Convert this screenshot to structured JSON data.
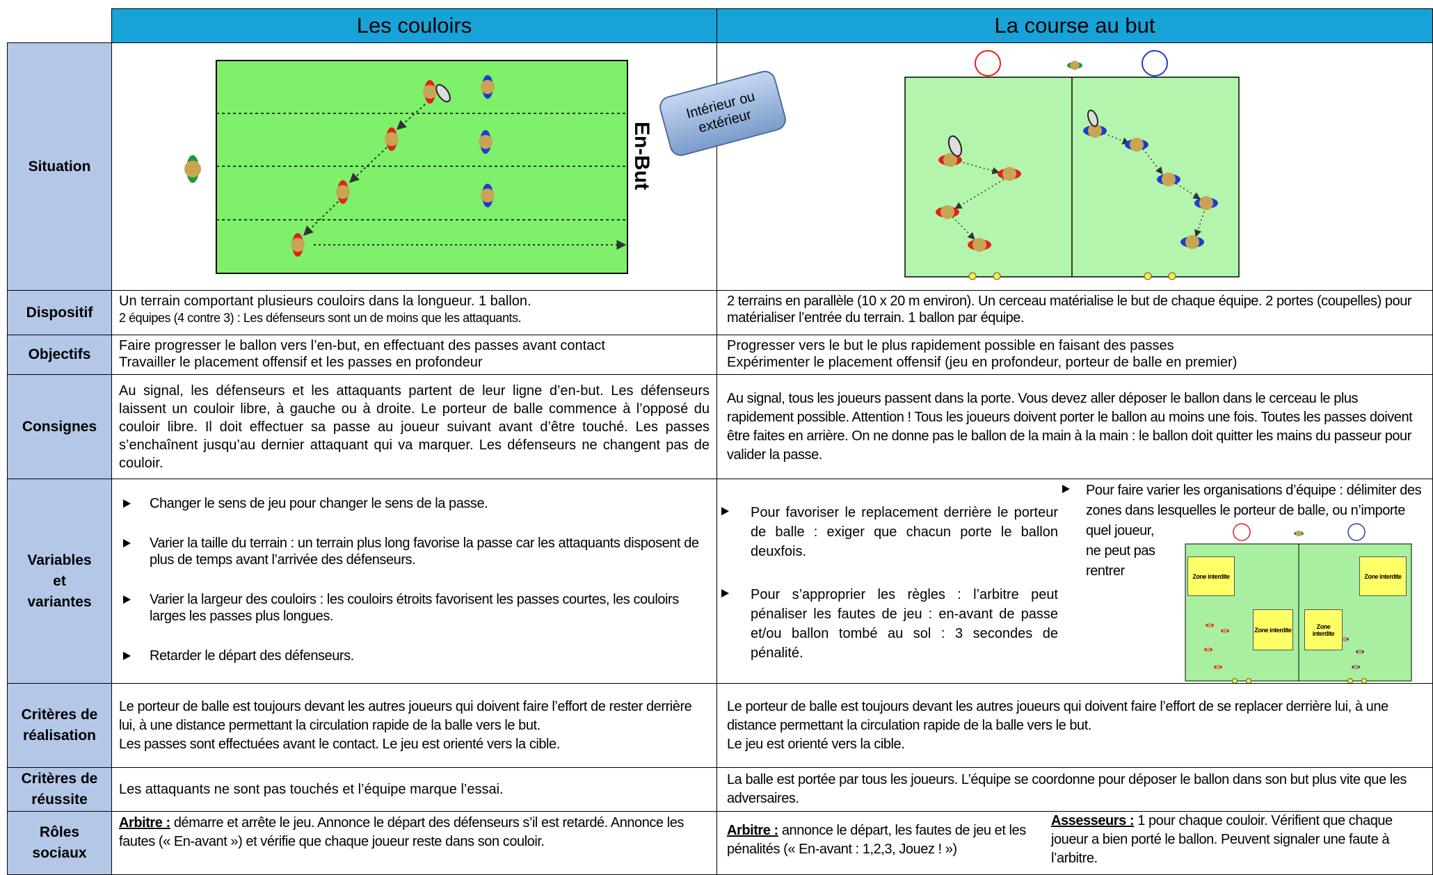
{
  "header": {
    "left": "Les couloirs",
    "right": "La course au but"
  },
  "situation": {
    "label": "Situation",
    "end_zone": "En-But",
    "callout": "Intérieur ou extérieur"
  },
  "dispositif": {
    "label": "Dispositif",
    "left": [
      "Un terrain comportant plusieurs couloirs dans la longueur. 1 ballon.",
      "2 équipes (4 contre 3) : Les défenseurs sont un de moins que les attaquants."
    ],
    "right": "2 terrains en parallèle (10 x 20 m environ). Un cerceau matérialise le but de chaque équipe. 2 portes (coupelles) pour matérialiser l’entrée du terrain. 1 ballon par équipe."
  },
  "objectifs": {
    "label": "Objectifs",
    "left": [
      "Faire progresser le ballon vers l’en-but, en effectuant des passes avant contact",
      "Travailler le placement offensif et les passes en profondeur"
    ],
    "right": [
      "Progresser vers le but le plus rapidement possible en faisant des passes",
      "Expérimenter le placement offensif (jeu en profondeur, porteur de balle en premier)"
    ]
  },
  "consignes": {
    "label": "Consignes",
    "left": "Au signal, les défenseurs et les attaquants partent de leur ligne d’en-but. Les défenseurs laissent un couloir libre, à gauche ou à droite. Le porteur de balle commence à l’opposé du couloir libre. Il doit effectuer sa passe au joueur suivant avant d’être touché. Les passes s’enchaînent jusqu’au dernier attaquant qui va marquer. Les défenseurs ne changent pas de couloir.",
    "right": "Au signal, tous les joueurs passent dans la porte. Vous devez aller déposer le ballon dans le cerceau le plus rapidement possible. Attention ! Tous les joueurs doivent porter le ballon au moins une fois. Toutes les passes doivent être faites en arrière. On ne donne pas le ballon de la main à la main : le ballon doit quitter les mains du passeur pour valider la passe."
  },
  "variables": {
    "label": "Variables et variantes",
    "left": [
      "Changer le sens de jeu pour changer le sens de la passe.",
      "Varier la taille du terrain : un terrain plus long favorise la passe car les attaquants disposent de plus de temps avant l’arrivée des défenseurs.",
      "Varier la largeur des couloirs : les couloirs étroits favorisent les passes courtes, les couloirs larges les passes plus longues.",
      "Retarder le départ des défenseurs."
    ],
    "right_a": [
      "Pour favoriser le replacement derrière le porteur de balle : exiger que chacun porte le ballon deuxfois.",
      "Pour s’approprier les règles : l’arbitre peut pénaliser les fautes de jeu : en-avant de passe et/ou ballon tombé au sol : 3 secondes de pénalité."
    ],
    "right_b": "Pour faire varier les organisations d’équipe : délimiter des zones dans lesquelles le porteur de balle, ou n’importe quel joueur, ne peut pas rentrer",
    "zones": [
      "Zone interdite",
      "Zone interdite",
      "Zone interdite",
      "Zone interdite"
    ]
  },
  "realisation": {
    "label": "Critères de réalisation",
    "left": [
      "Le porteur de balle est toujours devant les autres joueurs qui doivent faire l’effort de rester derrière lui, à une distance permettant la circulation rapide de la balle vers le but.",
      "Les passes sont effectuées avant le contact. Le jeu est orienté vers la cible."
    ],
    "right": [
      "Le porteur de balle est toujours devant les autres joueurs qui doivent faire l’effort de se replacer derrière lui, à une distance permettant la circulation rapide de la balle vers le but.",
      "Le jeu est orienté vers la cible."
    ]
  },
  "reussite": {
    "label": "Critères de réussite",
    "left": "Les attaquants ne sont pas touchés et l’équipe marque l’essai.",
    "right": "La balle est portée par tous les joueurs. L’équipe se coordonne pour déposer le ballon dans son but plus vite que les adversaires."
  },
  "roles": {
    "label": "Rôles sociaux",
    "left": {
      "role": "Arbitre :",
      "text": "démarre et arrête le jeu. Annonce le départ des défenseurs s’il est retardé. Annonce les fautes (« En-avant ») et vérifie que chaque joueur reste dans son couloir."
    },
    "right": [
      {
        "role": "Arbitre :",
        "text": "annonce le départ, les fautes de jeu et les pénalités (« En-avant : 1,2,3, Jouez ! »)"
      },
      {
        "role": "Assesseurs :",
        "text": "1 pour chaque couloir. Vérifient que chaque joueur a bien porté le ballon. Peuvent signaler une faute à l’arbitre."
      }
    ]
  }
}
